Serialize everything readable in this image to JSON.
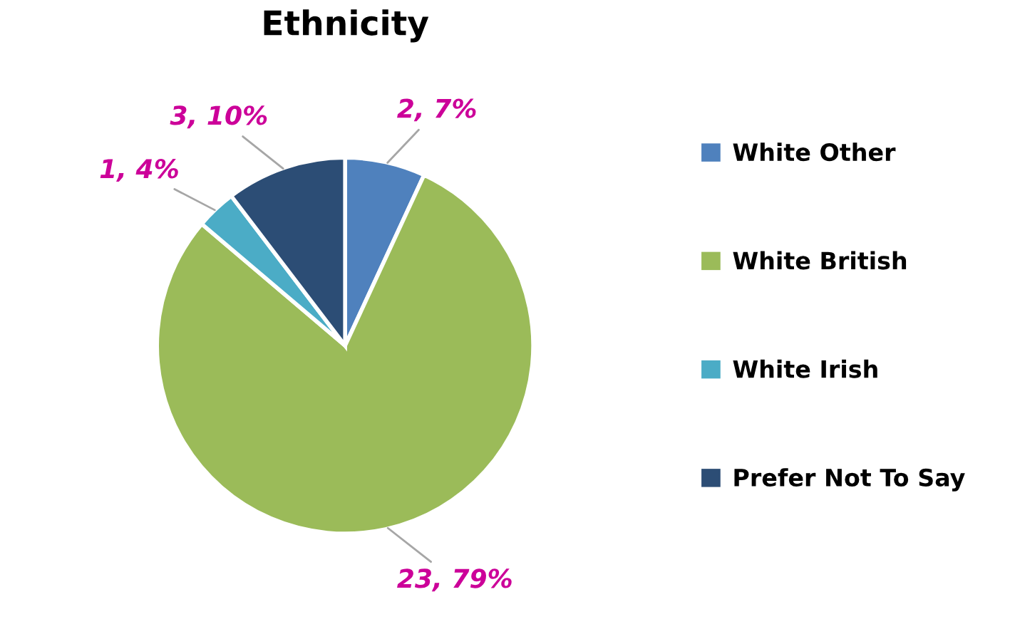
{
  "chart_data": {
    "type": "pie",
    "title": "Ethnicity",
    "categories": [
      "White Other",
      "White British",
      "White Irish",
      "Prefer Not To Say"
    ],
    "values": [
      2,
      23,
      1,
      3
    ],
    "colors": [
      "#4f81bd",
      "#9bbb59",
      "#4bacc6",
      "#2c4d75"
    ],
    "value_labels": [
      "2, 7%",
      "23, 79%",
      "1, 4%",
      "3, 10%"
    ],
    "legend": "right"
  }
}
